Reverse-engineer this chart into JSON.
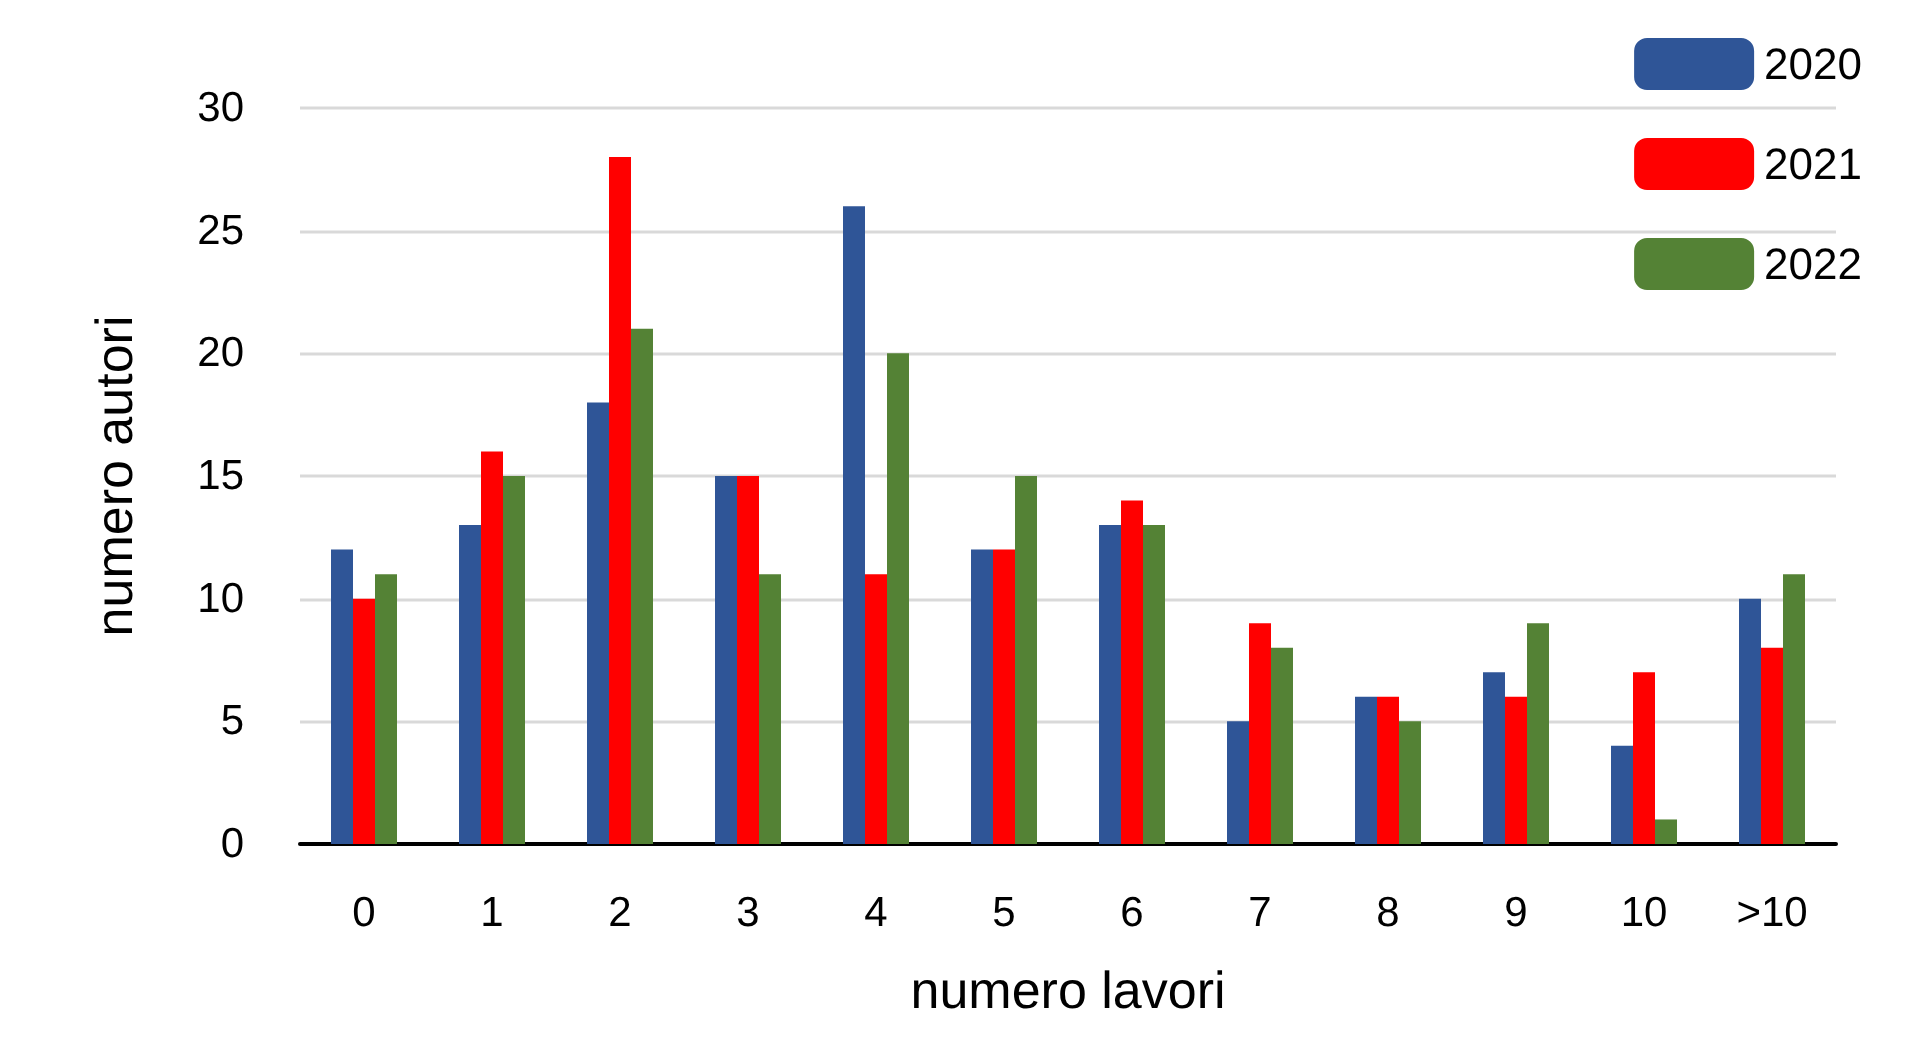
{
  "chart_data": {
    "type": "bar",
    "xlabel": "numero lavori",
    "ylabel": "numero autori",
    "categories": [
      "0",
      "1",
      "2",
      "3",
      "4",
      "5",
      "6",
      "7",
      "8",
      "9",
      "10",
      ">10"
    ],
    "series": [
      {
        "name": "2020",
        "color": "#2f5597",
        "values": [
          12,
          13,
          18,
          15,
          26,
          12,
          13,
          5,
          6,
          7,
          4,
          10
        ]
      },
      {
        "name": "2021",
        "color": "#ff0000",
        "values": [
          10,
          16,
          28,
          15,
          11,
          12,
          14,
          9,
          6,
          6,
          7,
          8
        ]
      },
      {
        "name": "2022",
        "color": "#548235",
        "values": [
          11,
          15,
          21,
          11,
          20,
          15,
          13,
          8,
          5,
          9,
          1,
          11
        ]
      }
    ],
    "ylim": [
      0,
      30
    ],
    "yticks": [
      0,
      5,
      10,
      15,
      20,
      25,
      30
    ],
    "grid": "y",
    "legend": "top right"
  }
}
